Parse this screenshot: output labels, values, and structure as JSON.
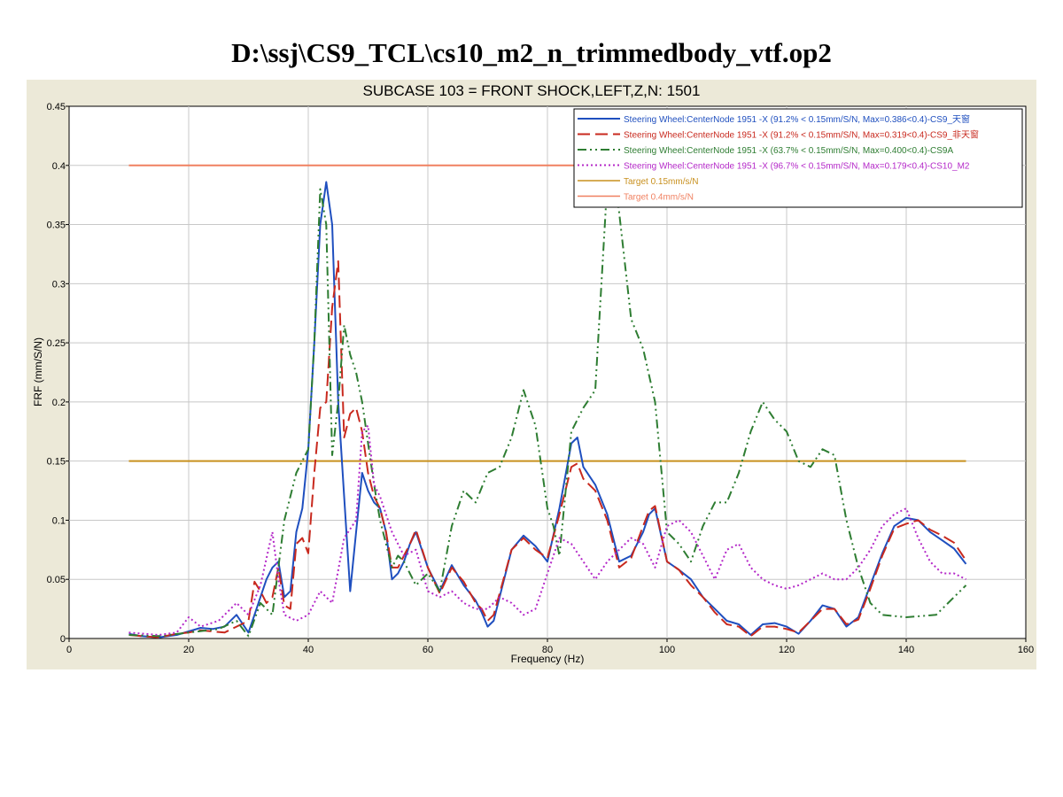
{
  "page_title": "D:\\ssj\\CS9_TCL\\cs10_m2_n_trimmedbody_vtf.op2",
  "chart_data": {
    "type": "line",
    "title": "SUBCASE 103 = FRONT SHOCK,LEFT,Z,N: 1501",
    "xlabel": "Frequency (Hz)",
    "ylabel": "FRF (mm/S/N)",
    "xlim": [
      0,
      160
    ],
    "ylim": [
      0,
      0.45
    ],
    "xticks": [
      "0",
      "20",
      "40",
      "60",
      "80",
      "100",
      "120",
      "140",
      "160"
    ],
    "yticks": [
      "0",
      "0.05",
      "0.1",
      "0.15",
      "0.2",
      "0.25",
      "0.3",
      "0.35",
      "0.4",
      "0.45"
    ],
    "grid": true,
    "legend_position": "top-right",
    "series": [
      {
        "name": "Steering Wheel:CenterNode 1951 -X  (91.2% < 0.15mm/S/N, Max=0.386<0.4)-CS9_天窗",
        "color": "#1f4fbf",
        "dash": "solid",
        "x": [
          10,
          12,
          15,
          18,
          20,
          22,
          24,
          26,
          28,
          30,
          31,
          32,
          33,
          34,
          35,
          36,
          37,
          38,
          39,
          40,
          41,
          42,
          43,
          44,
          45,
          46,
          47,
          48,
          49,
          50,
          51,
          52,
          53,
          54,
          55,
          56,
          57,
          58,
          60,
          62,
          64,
          66,
          68,
          69,
          70,
          71,
          72,
          74,
          76,
          78,
          80,
          82,
          84,
          85,
          86,
          88,
          90,
          92,
          94,
          96,
          97,
          98,
          100,
          102,
          104,
          106,
          108,
          110,
          112,
          114,
          116,
          118,
          120,
          122,
          124,
          126,
          128,
          130,
          132,
          134,
          136,
          138,
          140,
          142,
          144,
          146,
          148,
          150
        ],
        "y": [
          0.004,
          0.002,
          0.001,
          0.003,
          0.006,
          0.009,
          0.008,
          0.01,
          0.02,
          0.005,
          0.02,
          0.035,
          0.05,
          0.06,
          0.065,
          0.035,
          0.04,
          0.09,
          0.11,
          0.16,
          0.25,
          0.35,
          0.386,
          0.35,
          0.2,
          0.12,
          0.04,
          0.09,
          0.14,
          0.125,
          0.115,
          0.11,
          0.09,
          0.05,
          0.055,
          0.065,
          0.08,
          0.09,
          0.06,
          0.04,
          0.062,
          0.045,
          0.032,
          0.022,
          0.01,
          0.015,
          0.035,
          0.075,
          0.087,
          0.078,
          0.065,
          0.11,
          0.165,
          0.17,
          0.145,
          0.13,
          0.105,
          0.065,
          0.07,
          0.09,
          0.105,
          0.11,
          0.065,
          0.058,
          0.05,
          0.035,
          0.025,
          0.015,
          0.012,
          0.003,
          0.012,
          0.013,
          0.01,
          0.004,
          0.015,
          0.028,
          0.025,
          0.01,
          0.018,
          0.045,
          0.072,
          0.095,
          0.102,
          0.1,
          0.09,
          0.083,
          0.076,
          0.063
        ]
      },
      {
        "name": "Steering Wheel:CenterNode 1951 -X  (91.2% < 0.15mm/S/N, Max=0.319<0.4)-CS9_非天窗",
        "color": "#c8291e",
        "dash": "14,6",
        "x": [
          10,
          12,
          15,
          18,
          20,
          22,
          24,
          26,
          28,
          30,
          31,
          32,
          33,
          34,
          35,
          36,
          37,
          38,
          39,
          40,
          41,
          42,
          43,
          44,
          45,
          46,
          47,
          48,
          49,
          50,
          51,
          52,
          53,
          54,
          55,
          56,
          57,
          58,
          60,
          62,
          64,
          66,
          68,
          69,
          70,
          71,
          72,
          74,
          76,
          78,
          80,
          82,
          84,
          85,
          86,
          88,
          90,
          92,
          94,
          96,
          97,
          98,
          100,
          102,
          104,
          106,
          108,
          110,
          112,
          114,
          116,
          118,
          120,
          122,
          124,
          126,
          128,
          130,
          132,
          134,
          136,
          138,
          140,
          142,
          144,
          146,
          148,
          150
        ],
        "y": [
          0.003,
          0.002,
          0.001,
          0.004,
          0.005,
          0.007,
          0.006,
          0.005,
          0.01,
          0.015,
          0.048,
          0.04,
          0.03,
          0.035,
          0.06,
          0.028,
          0.025,
          0.08,
          0.085,
          0.072,
          0.14,
          0.195,
          0.2,
          0.28,
          0.319,
          0.17,
          0.19,
          0.195,
          0.175,
          0.14,
          0.12,
          0.11,
          0.09,
          0.06,
          0.06,
          0.07,
          0.08,
          0.092,
          0.06,
          0.038,
          0.06,
          0.048,
          0.03,
          0.025,
          0.015,
          0.02,
          0.038,
          0.075,
          0.085,
          0.075,
          0.068,
          0.105,
          0.145,
          0.148,
          0.135,
          0.125,
          0.1,
          0.06,
          0.068,
          0.095,
          0.108,
          0.112,
          0.065,
          0.058,
          0.045,
          0.035,
          0.022,
          0.012,
          0.01,
          0.002,
          0.01,
          0.01,
          0.008,
          0.005,
          0.015,
          0.025,
          0.025,
          0.012,
          0.016,
          0.042,
          0.07,
          0.093,
          0.097,
          0.1,
          0.092,
          0.087,
          0.081,
          0.066
        ]
      },
      {
        "name": "Steering Wheel:CenterNode 1951 -X  (63.7% < 0.15mm/S/N, Max=0.400<0.4)-CS9A",
        "color": "#2e7d32",
        "dash": "10,4,2,4,2,4",
        "x": [
          10,
          15,
          20,
          25,
          28,
          30,
          32,
          34,
          36,
          38,
          40,
          41,
          42,
          43,
          44,
          45,
          46,
          47,
          48,
          49,
          50,
          51,
          52,
          53,
          54,
          55,
          56,
          58,
          60,
          62,
          64,
          66,
          68,
          70,
          72,
          74,
          76,
          78,
          80,
          81,
          82,
          84,
          86,
          88,
          90,
          91,
          92,
          94,
          96,
          98,
          100,
          102,
          104,
          106,
          108,
          110,
          112,
          114,
          116,
          118,
          120,
          122,
          124,
          126,
          128,
          130,
          132,
          134,
          136,
          140,
          145,
          150
        ],
        "y": [
          0.003,
          0.002,
          0.005,
          0.008,
          0.015,
          0.002,
          0.03,
          0.02,
          0.1,
          0.14,
          0.16,
          0.25,
          0.38,
          0.35,
          0.155,
          0.2,
          0.265,
          0.24,
          0.225,
          0.2,
          0.165,
          0.13,
          0.1,
          0.08,
          0.06,
          0.07,
          0.065,
          0.045,
          0.055,
          0.04,
          0.095,
          0.125,
          0.115,
          0.14,
          0.145,
          0.17,
          0.21,
          0.18,
          0.11,
          0.095,
          0.07,
          0.175,
          0.195,
          0.21,
          0.385,
          0.4,
          0.36,
          0.27,
          0.245,
          0.2,
          0.09,
          0.08,
          0.065,
          0.095,
          0.115,
          0.115,
          0.14,
          0.175,
          0.2,
          0.185,
          0.175,
          0.15,
          0.145,
          0.16,
          0.155,
          0.1,
          0.06,
          0.03,
          0.02,
          0.018,
          0.02,
          0.045
        ]
      },
      {
        "name": "Steering Wheel:CenterNode 1951 -X  (96.7% < 0.15mm/S/N, Max=0.179<0.4)-CS10_M2",
        "color": "#b428c8",
        "dash": "2,3",
        "x": [
          10,
          15,
          18,
          20,
          22,
          25,
          28,
          30,
          32,
          34,
          35,
          36,
          38,
          40,
          42,
          44,
          46,
          48,
          49,
          50,
          51,
          52,
          54,
          56,
          58,
          60,
          62,
          64,
          66,
          68,
          70,
          72,
          74,
          76,
          78,
          80,
          82,
          84,
          86,
          88,
          90,
          92,
          94,
          96,
          98,
          100,
          102,
          104,
          106,
          108,
          110,
          112,
          114,
          116,
          118,
          120,
          122,
          124,
          126,
          128,
          130,
          132,
          134,
          136,
          138,
          140,
          142,
          144,
          146,
          148,
          150
        ],
        "y": [
          0.005,
          0.003,
          0.005,
          0.018,
          0.01,
          0.015,
          0.03,
          0.02,
          0.045,
          0.09,
          0.05,
          0.02,
          0.015,
          0.02,
          0.04,
          0.03,
          0.085,
          0.1,
          0.175,
          0.18,
          0.13,
          0.12,
          0.09,
          0.07,
          0.075,
          0.04,
          0.035,
          0.04,
          0.03,
          0.025,
          0.025,
          0.035,
          0.03,
          0.02,
          0.025,
          0.055,
          0.085,
          0.08,
          0.065,
          0.05,
          0.065,
          0.075,
          0.085,
          0.08,
          0.06,
          0.095,
          0.1,
          0.09,
          0.07,
          0.05,
          0.075,
          0.08,
          0.06,
          0.05,
          0.045,
          0.042,
          0.045,
          0.05,
          0.055,
          0.05,
          0.05,
          0.06,
          0.075,
          0.095,
          0.105,
          0.11,
          0.085,
          0.065,
          0.055,
          0.055,
          0.05
        ]
      }
    ],
    "reference_lines": [
      {
        "name": "Target 0.15mm/s/N",
        "value": 0.15,
        "x": [
          10,
          150
        ],
        "color": "#c8901e"
      },
      {
        "name": "Target 0.4mm/s/N",
        "value": 0.4,
        "x": [
          10,
          150
        ],
        "color": "#f08060"
      }
    ]
  }
}
